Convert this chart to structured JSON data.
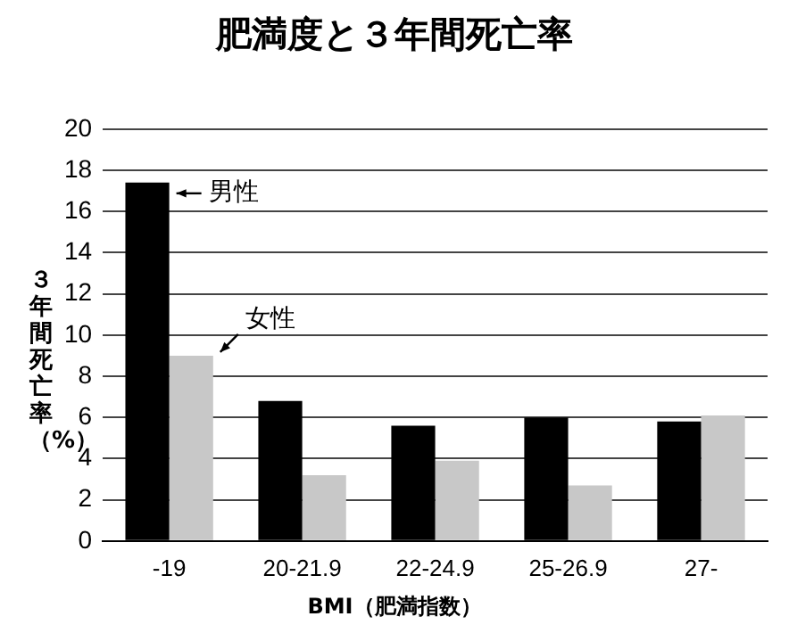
{
  "chart_data": {
    "type": "bar",
    "title": "肥満度と３年間死亡率",
    "xlabel": "BMI（肥満指数）",
    "ylabel": "３年間死亡率（%）",
    "categories": [
      "-19",
      "20-21.9",
      "22-24.9",
      "25-26.9",
      "27-"
    ],
    "series": [
      {
        "name": "男性",
        "color": "#000000",
        "values": [
          17.4,
          6.8,
          5.6,
          6.0,
          5.8
        ]
      },
      {
        "name": "女性",
        "color": "#c8c8c8",
        "values": [
          9.0,
          3.2,
          3.9,
          2.7,
          6.1
        ]
      }
    ],
    "ylim": [
      0,
      20
    ],
    "yticks": [
      0,
      2,
      4,
      6,
      8,
      10,
      12,
      14,
      16,
      18,
      20
    ],
    "grid": "y",
    "legend": "top left"
  }
}
